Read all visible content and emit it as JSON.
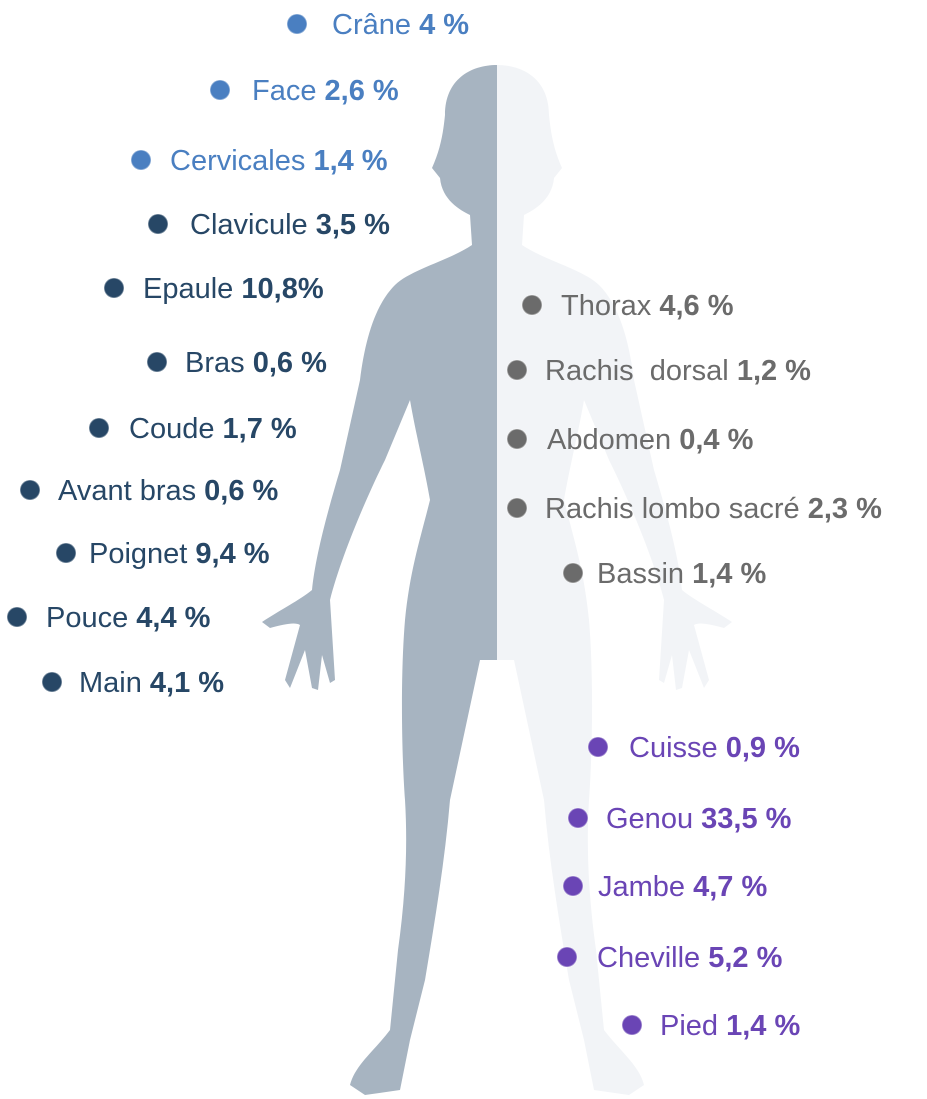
{
  "labels": [
    {
      "name": "Crâne",
      "value": "4 %"
    },
    {
      "name": "Face",
      "value": "2,6 %"
    },
    {
      "name": "Cervicales",
      "value": "1,4 %"
    },
    {
      "name": "Clavicule",
      "value": "3,5 %"
    },
    {
      "name": "Epaule",
      "value": "10,8%"
    },
    {
      "name": "Bras",
      "value": "0,6 %"
    },
    {
      "name": "Coude",
      "value": "1,7 %"
    },
    {
      "name": "Avant bras",
      "value": "0,6 %"
    },
    {
      "name": "Poignet",
      "value": "9,4 %"
    },
    {
      "name": "Pouce",
      "value": "4,4 %"
    },
    {
      "name": "Main",
      "value": "4,1 %"
    },
    {
      "name": "Thorax",
      "value": "4,6 %"
    },
    {
      "name": "Rachis  dorsal",
      "value": "1,2 %"
    },
    {
      "name": "Abdomen",
      "value": "0,4 %"
    },
    {
      "name": "Rachis lombo sacré",
      "value": "2,3 %"
    },
    {
      "name": "Bassin",
      "value": "1,4 %"
    },
    {
      "name": "Cuisse",
      "value": "0,9 %"
    },
    {
      "name": "Genou",
      "value": "33,5 %"
    },
    {
      "name": "Jambe",
      "value": "4,7 %"
    },
    {
      "name": "Cheville",
      "value": "5,2 %"
    },
    {
      "name": "Pied",
      "value": "1,4 %"
    }
  ]
}
